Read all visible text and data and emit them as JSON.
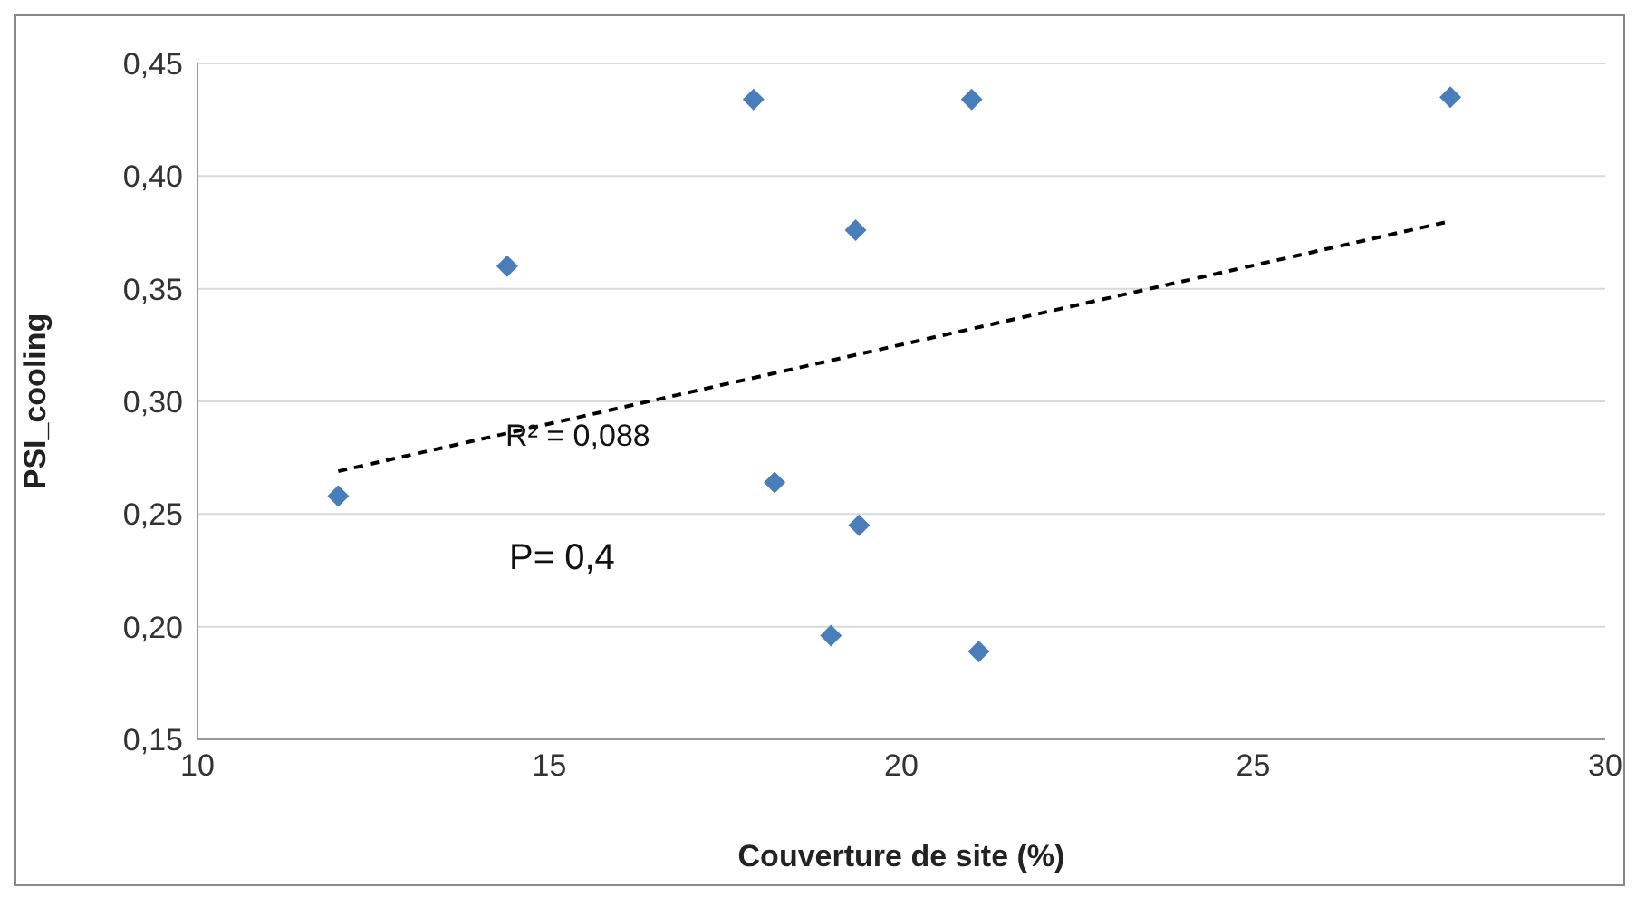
{
  "chart_data": {
    "type": "scatter",
    "xlabel": "Couverture de site (%)",
    "ylabel": "PSI_cooling",
    "series": [
      {
        "type": "scatter",
        "color": "#4a7ebb",
        "marker": "diamond",
        "x": [
          12.0,
          14.4,
          17.9,
          21.0,
          27.8,
          19.35,
          18.2,
          19.4,
          19.0,
          21.1
        ],
        "values": [
          0.258,
          0.36,
          0.434,
          0.434,
          0.435,
          0.376,
          0.264,
          0.245,
          0.196,
          0.189
        ]
      },
      {
        "type": "line",
        "color": "#000000",
        "line_style": "dashed",
        "marker": "none",
        "x": [
          12.0,
          27.8
        ],
        "values": [
          0.269,
          0.38
        ]
      }
    ],
    "annotations": [
      "R² = 0,088",
      "P= 0,4"
    ],
    "xlim": [
      10,
      30
    ],
    "xticks": [
      10,
      15,
      20,
      25,
      30
    ],
    "ylim": [
      0.15,
      0.45
    ],
    "yticks": [
      {
        "value": 0.15,
        "label": "0,15"
      },
      {
        "value": 0.2,
        "label": "0,20"
      },
      {
        "value": 0.25,
        "label": "0,25"
      },
      {
        "value": 0.3,
        "label": "0,30"
      },
      {
        "value": 0.35,
        "label": "0,35"
      },
      {
        "value": 0.4,
        "label": "0,40"
      },
      {
        "value": 0.45,
        "label": "0,45"
      }
    ],
    "grid": "y",
    "legend": false
  }
}
